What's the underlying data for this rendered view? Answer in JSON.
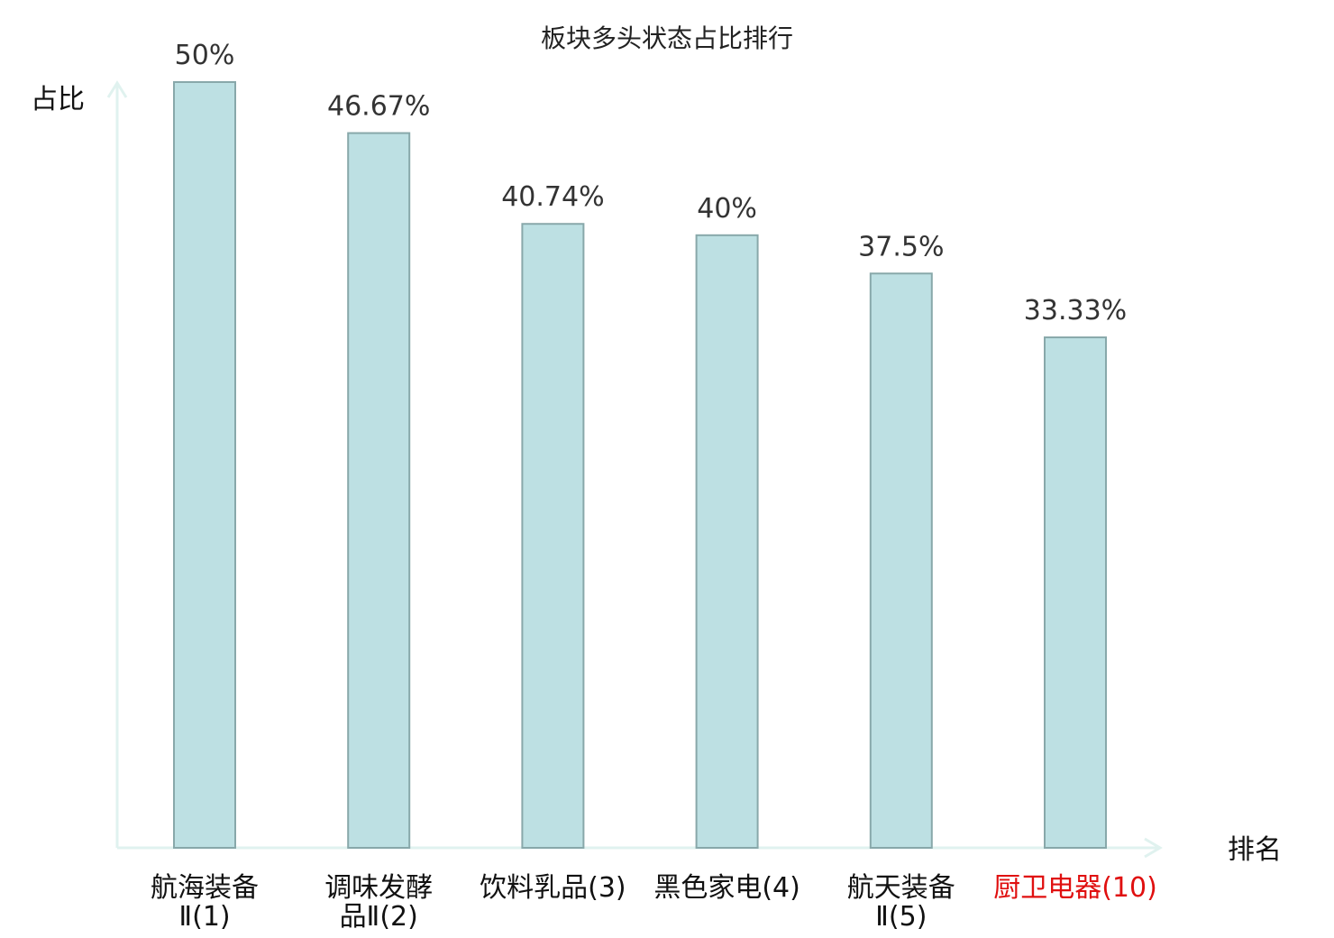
{
  "chart_data": {
    "type": "bar",
    "title": "板块多头状态占比排行",
    "ylabel": "占比",
    "xlabel": "排名",
    "ylim": [
      0,
      50
    ],
    "categories": [
      {
        "lines": [
          "航海装备",
          "Ⅱ(1)"
        ],
        "highlight": false
      },
      {
        "lines": [
          "调味发酵",
          "品Ⅱ(2)"
        ],
        "highlight": false
      },
      {
        "lines": [
          "饮料乳品(3)"
        ],
        "highlight": false
      },
      {
        "lines": [
          "黑色家电(4)"
        ],
        "highlight": false
      },
      {
        "lines": [
          "航天装备",
          "Ⅱ(5)"
        ],
        "highlight": false
      },
      {
        "lines": [
          "厨卫电器(10)"
        ],
        "highlight": true
      }
    ],
    "values": [
      50,
      46.67,
      40.74,
      40,
      37.5,
      33.33
    ],
    "value_labels": [
      "50%",
      "46.67%",
      "40.74%",
      "40%",
      "37.5%",
      "33.33%"
    ],
    "grid": false
  },
  "colors": {
    "bar_fill": "#bde0e3",
    "bar_stroke": "#88a8aa",
    "axis": "#e0f2ef",
    "highlight": "#e01010"
  }
}
